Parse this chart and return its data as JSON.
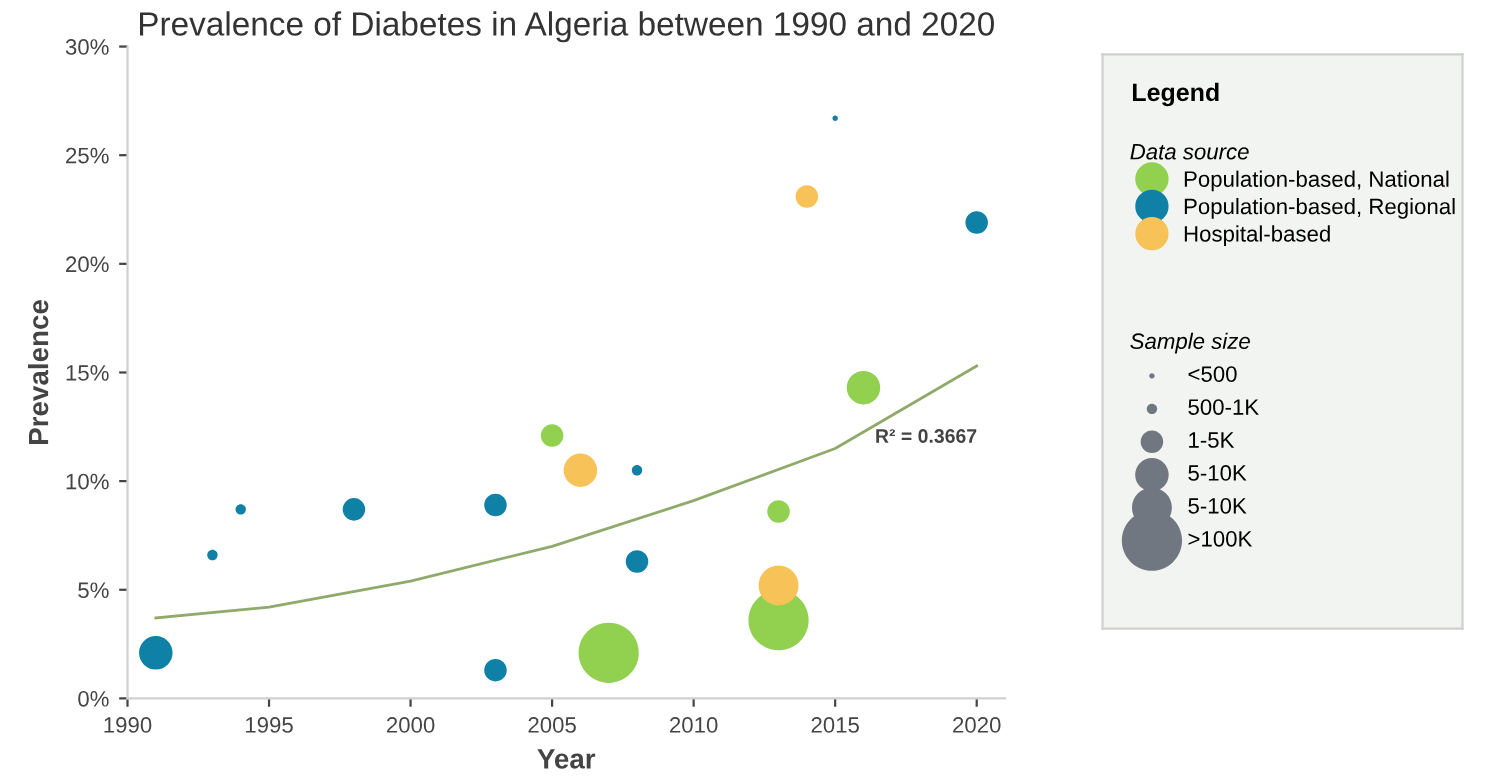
{
  "chart_data": {
    "type": "bubble",
    "title": "Prevalence of Diabetes in Algeria between 1990 and 2020",
    "xlabel": "Year",
    "ylabel": "Prevalence",
    "legend_title": "Legend",
    "series": [
      {
        "name": "Population-based, National",
        "color": "#92d050",
        "x": [
          2005,
          2007,
          2013,
          2013,
          2016
        ],
        "values": [
          12.1,
          2.1,
          8.6,
          3.6,
          14.3
        ],
        "sizes": [
          0.14,
          1,
          0.14,
          1,
          0.31
        ]
      },
      {
        "name": "Population-based, Regional",
        "color": "#0f81a6",
        "x": [
          1991,
          1993,
          1994,
          1998,
          2003,
          2003,
          2008,
          2008,
          2015,
          2020
        ],
        "values": [
          2.1,
          6.6,
          8.7,
          8.7,
          8.9,
          1.3,
          10.5,
          6.3,
          26.7,
          21.9
        ],
        "sizes": [
          0.31,
          0.03,
          0.03,
          0.14,
          0.14,
          0.14,
          0.03,
          0.14,
          0.008,
          0.14
        ]
      },
      {
        "name": "Hospital-based",
        "color": "#f7c257",
        "x": [
          2006,
          2013,
          2014
        ],
        "values": [
          10.5,
          5.2,
          23.1
        ],
        "sizes": [
          0.31,
          0.44,
          0.14
        ]
      },
      {
        "type": "line",
        "color": "#8faa6a",
        "x": [
          1991,
          1995,
          2000,
          2005,
          2010,
          2015,
          2020
        ],
        "values": [
          3.7,
          4.2,
          5.4,
          7.0,
          9.1,
          11.5,
          15.3
        ]
      }
    ],
    "size_legend": [
      {
        "value": 0.008,
        "label": "<500"
      },
      {
        "value": 0.03,
        "label": "500-1K"
      },
      {
        "value": 0.14,
        "label": "1-5K"
      },
      {
        "value": 0.31,
        "label": "5-10K"
      },
      {
        "value": 0.44,
        "label": "5-10K"
      },
      {
        "value": 1,
        "label": ">100K"
      }
    ],
    "annotations": [
      "Data source",
      "Sample size",
      "R² = 0.3667"
    ],
    "xlim": [
      1990,
      2021
    ],
    "xticks": [
      1990,
      1995,
      2000,
      2005,
      2010,
      2015,
      2020
    ],
    "ylim": [
      0,
      30
    ],
    "yticks": [
      {
        "value": 0,
        "label": "0%"
      },
      {
        "value": 5,
        "label": "5%"
      },
      {
        "value": 10,
        "label": "10%"
      },
      {
        "value": 15,
        "label": "15%"
      },
      {
        "value": 20,
        "label": "20%"
      },
      {
        "value": 25,
        "label": "25%"
      },
      {
        "value": 30,
        "label": "30%"
      }
    ],
    "grid": false,
    "legend": "right"
  }
}
